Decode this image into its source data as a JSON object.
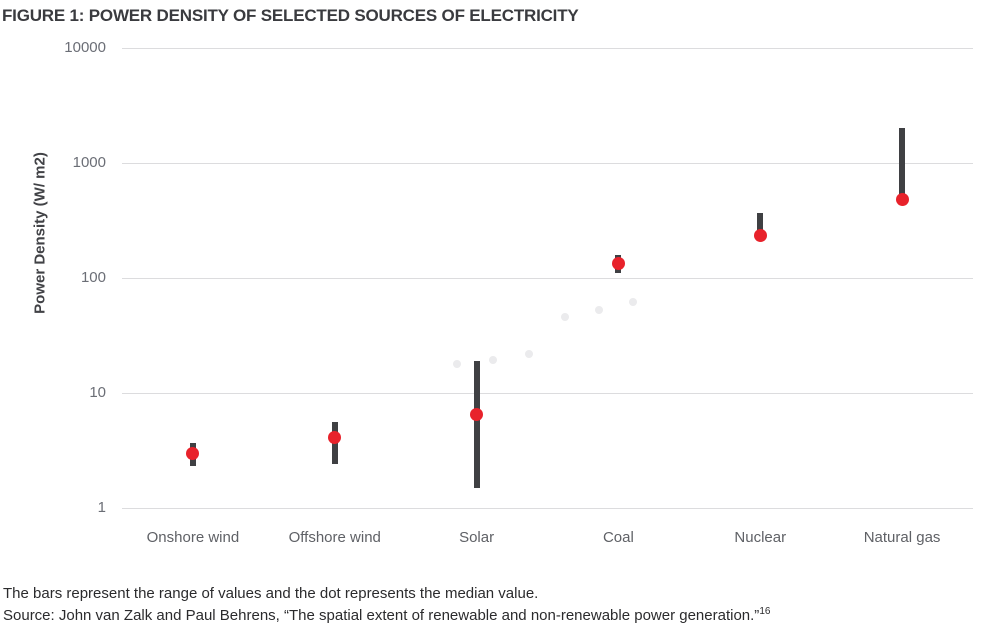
{
  "figure": {
    "title": "FIGURE 1: POWER DENSITY OF SELECTED SOURCES OF ELECTRICITY",
    "note": "The bars represent the range of values and the dot represents the median value.",
    "source": "Source: John van Zalk and Paul Behrens, “The spatial extent of renewable and non-renewable power generation.”",
    "source_ref": "16"
  },
  "chart_data": {
    "type": "range-dot",
    "title": "FIGURE 1: POWER DENSITY OF SELECTED SOURCES OF ELECTRICITY",
    "ylabel": "Power Density (W/ m2)",
    "xlabel": "",
    "y_scale": "log",
    "ylim": [
      1,
      10000
    ],
    "y_ticks": [
      "1",
      "10",
      "100",
      "1000",
      "10000"
    ],
    "grid": "horizontal gridlines only",
    "legend_position": "none",
    "categories": [
      "Onshore wind",
      "Offshore wind",
      "Solar",
      "Coal",
      "Nuclear",
      "Natural gas"
    ],
    "series": [
      {
        "category": "Onshore wind",
        "range_min": 2.3,
        "range_max": 3.7,
        "median": 3.0
      },
      {
        "category": "Offshore wind",
        "range_min": 2.4,
        "range_max": 5.6,
        "median": 4.1
      },
      {
        "category": "Solar",
        "range_min": 1.5,
        "range_max": 19,
        "median": 6.5
      },
      {
        "category": "Coal",
        "range_min": 110,
        "range_max": 160,
        "median": 135
      },
      {
        "category": "Nuclear",
        "range_min": 225,
        "range_max": 365,
        "median": 235
      },
      {
        "category": "Natural gas",
        "range_min": 480,
        "range_max": 2000,
        "median": 480
      }
    ],
    "faint_background_points": [
      {
        "x_frac": 0.394,
        "value": 18
      },
      {
        "x_frac": 0.436,
        "value": 19.5
      },
      {
        "x_frac": 0.478,
        "value": 22
      },
      {
        "x_frac": 0.52,
        "value": 46
      },
      {
        "x_frac": 0.56,
        "value": 53
      },
      {
        "x_frac": 0.601,
        "value": 62
      }
    ],
    "colors": {
      "range_bar": "#3f4043",
      "median_dot": "#e8222b",
      "gridline": "#dcdcde",
      "tick_label": "#6b6e76",
      "category_label": "#5f6166",
      "axis_title": "#414246",
      "figure_title": "#3a3b3f",
      "footnote": "#2b2b2d",
      "faint_point": "#ebebed",
      "background": "#ffffff"
    }
  }
}
